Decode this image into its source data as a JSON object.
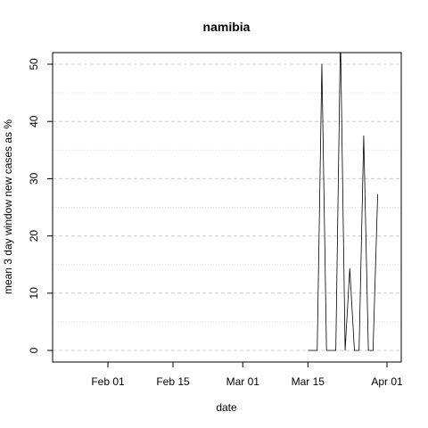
{
  "chart_data": {
    "type": "line",
    "title": "namibia",
    "xlabel": "date",
    "ylabel": "mean  3  day window new cases as %",
    "x_ticks": [
      {
        "label": "Feb 01",
        "day": 11
      },
      {
        "label": "Feb 15",
        "day": 25
      },
      {
        "label": "Mar 01",
        "day": 40
      },
      {
        "label": "Mar 15",
        "day": 54
      },
      {
        "label": "Apr 01",
        "day": 71
      }
    ],
    "y_ticks": [
      {
        "label": "0",
        "value": 0
      },
      {
        "label": "10",
        "value": 10
      },
      {
        "label": "20",
        "value": 20
      },
      {
        "label": "30",
        "value": 30
      },
      {
        "label": "40",
        "value": 40
      },
      {
        "label": "50",
        "value": 50
      }
    ],
    "xlim": [
      0,
      72.5
    ],
    "ylim": [
      -2,
      52
    ],
    "series": [
      {
        "name": "mean 3 day window new cases as %",
        "x_start_date": "Mar 15",
        "x": [
          54,
          55,
          56,
          57,
          58,
          59,
          60,
          61,
          62,
          63,
          64,
          65,
          66,
          67,
          68,
          69,
          70,
          71
        ],
        "values": [
          0,
          0,
          0,
          50,
          0,
          0,
          0,
          55,
          0,
          14.3,
          0,
          0,
          37.5,
          0,
          0,
          27.3,
          null,
          null
        ]
      }
    ],
    "grid": true
  }
}
